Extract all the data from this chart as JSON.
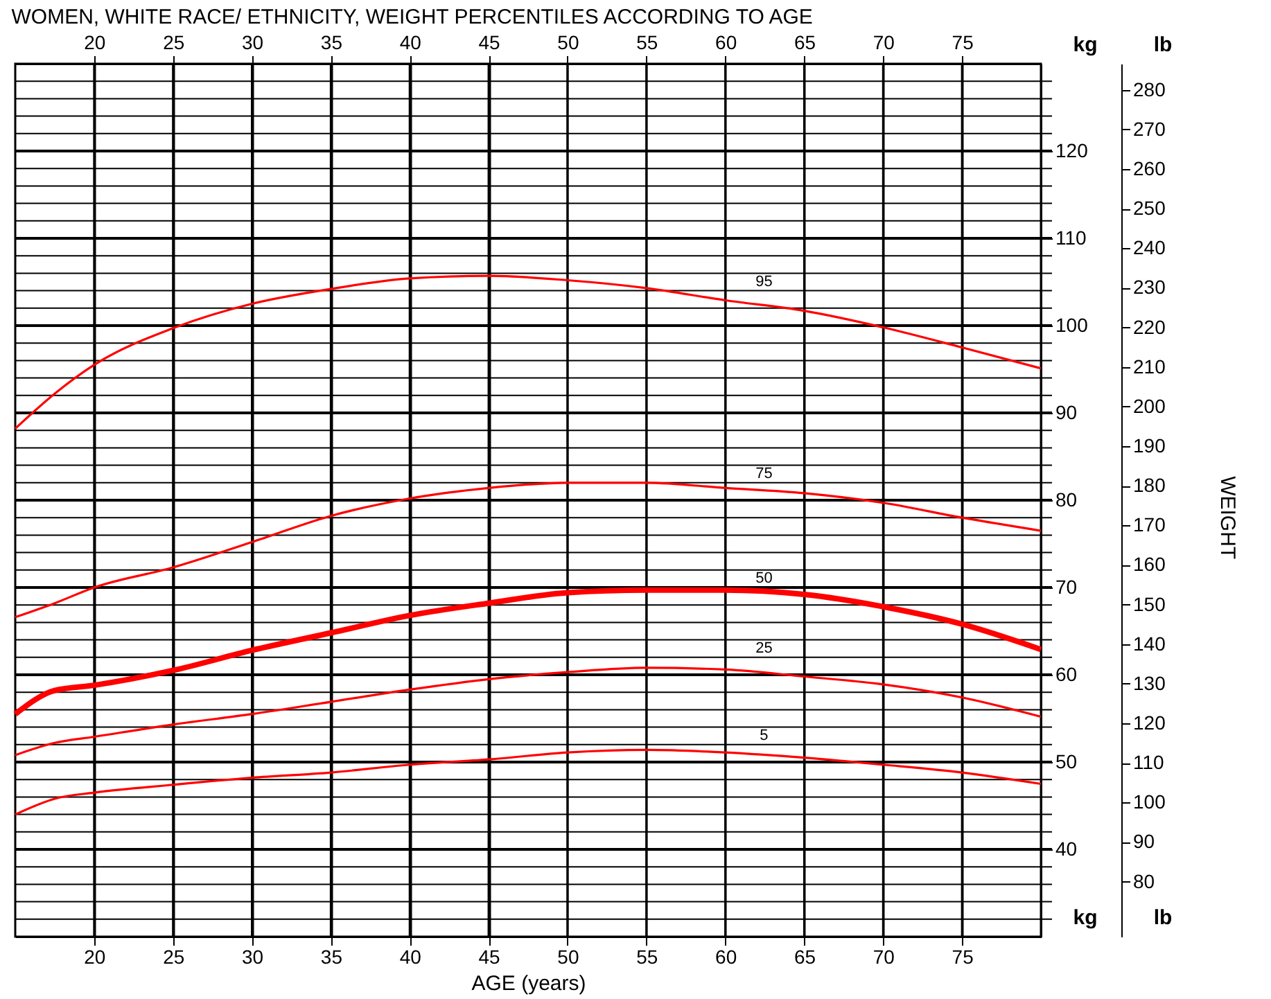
{
  "chart_data": {
    "type": "line",
    "title": "WOMEN, WHITE RACE/ ETHNICITY, WEIGHT PERCENTILES ACCORDING TO AGE",
    "xlabel": "AGE (years)",
    "ylabel": "kg",
    "y2label": "lb",
    "annotations": [
      "WEIGHT"
    ],
    "x": [
      15,
      17.5,
      20,
      25,
      30,
      35,
      40,
      45,
      50,
      55,
      60,
      65,
      70,
      75,
      80
    ],
    "series": [
      {
        "name": "5",
        "color": "#ff0000",
        "values": [
          44.0,
          45.8,
          46.5,
          47.4,
          48.2,
          48.8,
          49.7,
          50.3,
          51.1,
          51.4,
          51.1,
          50.5,
          49.7,
          48.8,
          47.5
        ]
      },
      {
        "name": "25",
        "color": "#ff0000",
        "values": [
          50.8,
          52.2,
          52.9,
          54.3,
          55.5,
          56.9,
          58.3,
          59.5,
          60.3,
          60.8,
          60.6,
          59.8,
          58.9,
          57.4,
          55.2
        ]
      },
      {
        "name": "50",
        "color": "#ff0000",
        "values": [
          55.5,
          58.2,
          58.8,
          60.5,
          62.8,
          64.8,
          66.8,
          68.2,
          69.4,
          69.7,
          69.7,
          69.2,
          67.8,
          65.8,
          62.9
        ]
      },
      {
        "name": "75",
        "color": "#ff0000",
        "values": [
          66.6,
          68.2,
          70.0,
          72.3,
          75.2,
          78.2,
          80.2,
          81.4,
          82.0,
          82.0,
          81.4,
          80.8,
          79.7,
          78.0,
          76.5
        ]
      },
      {
        "name": "95",
        "color": "#ff0000",
        "values": [
          88.2,
          92.2,
          95.5,
          99.7,
          102.5,
          104.2,
          105.4,
          105.7,
          105.2,
          104.3,
          102.9,
          101.7,
          99.8,
          97.5,
          95.1
        ]
      }
    ],
    "xlim": [
      15,
      80
    ],
    "xticks": [
      20,
      25,
      30,
      35,
      40,
      45,
      50,
      55,
      60,
      65,
      70,
      75
    ],
    "x2lim": [
      15,
      80
    ],
    "x2ticks": [
      20,
      25,
      30,
      35,
      40,
      45,
      50,
      55,
      60,
      65,
      70,
      75
    ],
    "ylim": [
      30,
      130
    ],
    "yticks": [
      {
        "value": 32,
        "label": null
      },
      {
        "value": 34,
        "label": null
      },
      {
        "value": 36,
        "label": null
      },
      {
        "value": 38,
        "label": null
      },
      40,
      {
        "value": 42,
        "label": null
      },
      {
        "value": 44,
        "label": null
      },
      {
        "value": 46,
        "label": null
      },
      {
        "value": 48,
        "label": null
      },
      50,
      {
        "value": 52,
        "label": null
      },
      {
        "value": 54,
        "label": null
      },
      {
        "value": 56,
        "label": null
      },
      {
        "value": 58,
        "label": null
      },
      60,
      {
        "value": 62,
        "label": null
      },
      {
        "value": 64,
        "label": null
      },
      {
        "value": 66,
        "label": null
      },
      {
        "value": 68,
        "label": null
      },
      70,
      {
        "value": 72,
        "label": null
      },
      {
        "value": 74,
        "label": null
      },
      {
        "value": 76,
        "label": null
      },
      {
        "value": 78,
        "label": null
      },
      80,
      {
        "value": 82,
        "label": null
      },
      {
        "value": 84,
        "label": null
      },
      {
        "value": 86,
        "label": null
      },
      {
        "value": 88,
        "label": null
      },
      90,
      {
        "value": 92,
        "label": null
      },
      {
        "value": 94,
        "label": null
      },
      {
        "value": 96,
        "label": null
      },
      {
        "value": 98,
        "label": null
      },
      100,
      {
        "value": 102,
        "label": null
      },
      {
        "value": 104,
        "label": null
      },
      {
        "value": 106,
        "label": null
      },
      {
        "value": 108,
        "label": null
      },
      110,
      {
        "value": 112,
        "label": null
      },
      {
        "value": 114,
        "label": null
      },
      {
        "value": 116,
        "label": null
      },
      {
        "value": 118,
        "label": null
      },
      120,
      {
        "value": 122,
        "label": null
      },
      {
        "value": 124,
        "label": null
      },
      {
        "value": 126,
        "label": null
      },
      {
        "value": 128,
        "label": null
      }
    ],
    "y2lim": [
      66.1,
      286.6
    ],
    "y2ticks": [
      80,
      90,
      100,
      110,
      120,
      130,
      140,
      150,
      160,
      170,
      180,
      190,
      200,
      210,
      220,
      230,
      240,
      250,
      260,
      270,
      280
    ],
    "grid": true,
    "legend": false
  }
}
